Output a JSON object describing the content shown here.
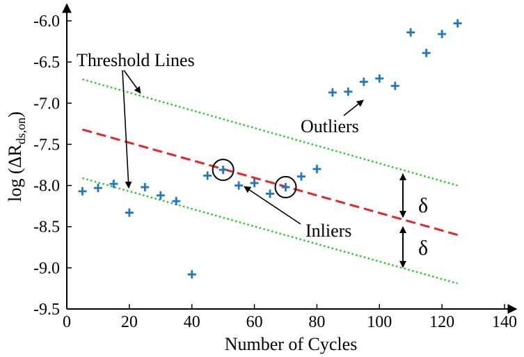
{
  "chart_data": {
    "type": "scatter",
    "title": "",
    "xlabel": "Number of Cycles",
    "ylabel": {
      "prefix": "log (ΔR",
      "subscript": "ds,on",
      "suffix": ")"
    },
    "xlim": [
      0,
      140
    ],
    "ylim": [
      -9.5,
      -5.85
    ],
    "xticks": [
      0,
      20,
      40,
      60,
      80,
      100,
      120,
      140
    ],
    "xtick_labels": [
      "0",
      "20",
      "40",
      "60",
      "80",
      "100",
      "120",
      "140"
    ],
    "yticks": [
      -6.0,
      -6.5,
      -7.0,
      -7.5,
      -8.0,
      -8.5,
      -9.0,
      -9.5
    ],
    "ytick_labels": [
      "-6.0",
      "-6.5",
      "-7.0",
      "-7.5",
      "-8.0",
      "-8.5",
      "-9.0",
      "-9.5"
    ],
    "grid": false,
    "colors": {
      "points": "#1f77c4",
      "fit_line": "#e8232a",
      "threshold_lines": "#22cc22",
      "annotation": "#000000"
    },
    "points": [
      {
        "x": 5,
        "y": -8.07
      },
      {
        "x": 10,
        "y": -8.03
      },
      {
        "x": 15,
        "y": -7.98
      },
      {
        "x": 20,
        "y": -8.33
      },
      {
        "x": 25,
        "y": -8.02
      },
      {
        "x": 30,
        "y": -8.12
      },
      {
        "x": 35,
        "y": -8.19
      },
      {
        "x": 40,
        "y": -9.08
      },
      {
        "x": 45,
        "y": -7.88
      },
      {
        "x": 50,
        "y": -7.81
      },
      {
        "x": 55,
        "y": -8.0
      },
      {
        "x": 60,
        "y": -7.97
      },
      {
        "x": 65,
        "y": -8.1
      },
      {
        "x": 70,
        "y": -8.02
      },
      {
        "x": 75,
        "y": -7.89
      },
      {
        "x": 80,
        "y": -7.8
      },
      {
        "x": 85,
        "y": -6.87
      },
      {
        "x": 90,
        "y": -6.86
      },
      {
        "x": 95,
        "y": -6.74
      },
      {
        "x": 100,
        "y": -6.7
      },
      {
        "x": 105,
        "y": -6.79
      },
      {
        "x": 110,
        "y": -6.14
      },
      {
        "x": 115,
        "y": -6.39
      },
      {
        "x": 120,
        "y": -6.16
      },
      {
        "x": 125,
        "y": -6.03
      }
    ],
    "circled_points": [
      {
        "x": 50,
        "y": -7.81
      },
      {
        "x": 70,
        "y": -8.02
      }
    ],
    "fit_line": {
      "x": [
        5,
        125
      ],
      "y": [
        -7.32,
        -8.6
      ]
    },
    "threshold_lines": [
      {
        "x": [
          5,
          125
        ],
        "y": [
          -6.71,
          -8.0
        ]
      },
      {
        "x": [
          5,
          125
        ],
        "y": [
          -7.91,
          -9.19
        ]
      }
    ],
    "annotations": {
      "threshold": "Threshold Lines",
      "outliers": "Outliers",
      "inliers": "Inliers",
      "delta": "δ"
    }
  }
}
